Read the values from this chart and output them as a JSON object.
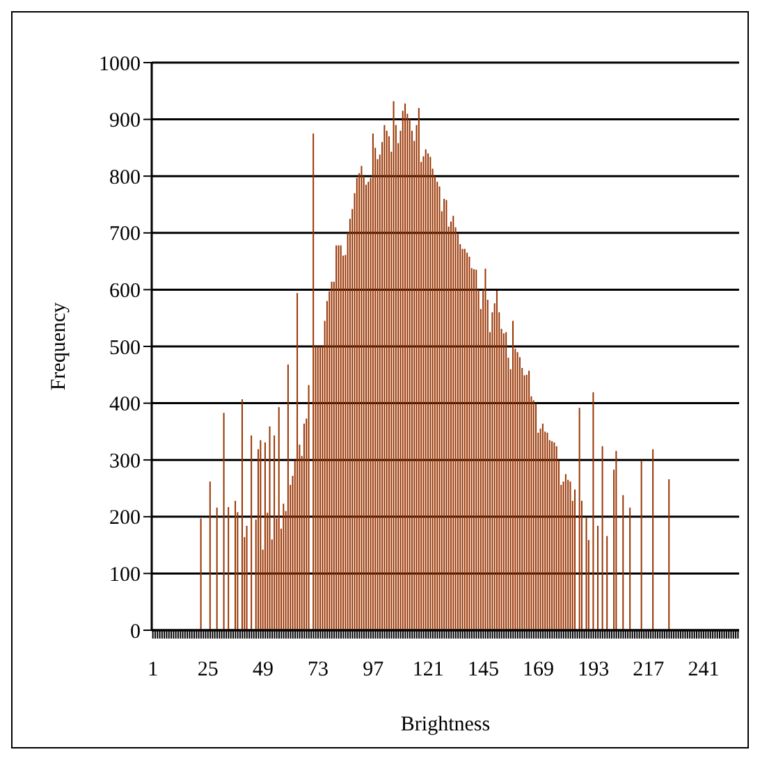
{
  "chart_data": {
    "type": "bar",
    "xlabel": "Brightness",
    "ylabel": "Frequency",
    "color": "#993300",
    "ylim": [
      0,
      1000
    ],
    "yticks": [
      0,
      100,
      200,
      300,
      400,
      500,
      600,
      700,
      800,
      900,
      1000
    ],
    "grid": "y",
    "categories": [
      "1",
      null,
      null,
      null,
      null,
      null,
      null,
      null,
      null,
      null,
      null,
      null,
      null,
      null,
      null,
      null,
      null,
      null,
      null,
      null,
      null,
      null,
      null,
      null,
      "25",
      null,
      null,
      null,
      null,
      null,
      null,
      null,
      null,
      null,
      null,
      null,
      null,
      null,
      null,
      null,
      null,
      null,
      null,
      null,
      null,
      null,
      null,
      null,
      "49",
      null,
      null,
      null,
      null,
      null,
      null,
      null,
      null,
      null,
      null,
      null,
      null,
      null,
      null,
      null,
      null,
      null,
      null,
      null,
      null,
      null,
      null,
      null,
      "73",
      null,
      null,
      null,
      null,
      null,
      null,
      null,
      null,
      null,
      null,
      null,
      null,
      null,
      null,
      null,
      null,
      null,
      null,
      null,
      null,
      null,
      null,
      null,
      "97",
      null,
      null,
      null,
      null,
      null,
      null,
      null,
      null,
      null,
      null,
      null,
      null,
      null,
      null,
      null,
      null,
      null,
      null,
      null,
      null,
      null,
      null,
      null,
      "121",
      null,
      null,
      null,
      null,
      null,
      null,
      null,
      null,
      null,
      null,
      null,
      null,
      null,
      null,
      null,
      null,
      null,
      null,
      null,
      null,
      null,
      null,
      null,
      "145",
      null,
      null,
      null,
      null,
      null,
      null,
      null,
      null,
      null,
      null,
      null,
      null,
      null,
      null,
      null,
      null,
      null,
      null,
      null,
      null,
      null,
      null,
      null,
      "169",
      null,
      null,
      null,
      null,
      null,
      null,
      null,
      null,
      null,
      null,
      null,
      null,
      null,
      null,
      null,
      null,
      null,
      null,
      null,
      null,
      null,
      null,
      null,
      "193",
      null,
      null,
      null,
      null,
      null,
      null,
      null,
      null,
      null,
      null,
      null,
      null,
      null,
      null,
      null,
      null,
      null,
      null,
      null,
      null,
      null,
      null,
      null,
      "217",
      null,
      null,
      null,
      null,
      null,
      null,
      null,
      null,
      null,
      null,
      null,
      null,
      null,
      null,
      null,
      null,
      null,
      null,
      null,
      null,
      null,
      null,
      null,
      "241",
      null,
      null,
      null,
      null,
      null,
      null,
      null,
      null,
      null,
      null,
      null,
      null,
      null,
      null,
      null
    ],
    "values": [
      0,
      0,
      0,
      0,
      0,
      0,
      0,
      0,
      0,
      0,
      0,
      0,
      0,
      0,
      0,
      0,
      0,
      0,
      0,
      0,
      0,
      197,
      0,
      0,
      0,
      262,
      0,
      0,
      216,
      0,
      0,
      383,
      0,
      217,
      0,
      0,
      228,
      208,
      0,
      407,
      164,
      184,
      0,
      343,
      0,
      195,
      319,
      335,
      142,
      331,
      207,
      359,
      160,
      343,
      197,
      393,
      179,
      223,
      210,
      468,
      256,
      272,
      299,
      594,
      327,
      307,
      364,
      373,
      432,
      0,
      875,
      500,
      500,
      500,
      500,
      545,
      580,
      597,
      614,
      614,
      678,
      678,
      678,
      660,
      661,
      700,
      725,
      742,
      770,
      797,
      805,
      818,
      800,
      785,
      790,
      797,
      875,
      850,
      830,
      838,
      860,
      890,
      880,
      870,
      843,
      932,
      890,
      858,
      880,
      915,
      928,
      910,
      900,
      880,
      862,
      890,
      920,
      825,
      835,
      847,
      840,
      834,
      813,
      800,
      790,
      782,
      738,
      760,
      758,
      711,
      720,
      730,
      710,
      698,
      680,
      672,
      672,
      665,
      658,
      638,
      636,
      635,
      600,
      566,
      600,
      637,
      582,
      525,
      560,
      576,
      598,
      560,
      531,
      523,
      525,
      480,
      460,
      545,
      496,
      490,
      481,
      462,
      449,
      450,
      457,
      412,
      405,
      399,
      348,
      355,
      364,
      350,
      348,
      335,
      333,
      331,
      324,
      299,
      256,
      262,
      275,
      265,
      262,
      228,
      248,
      0,
      392,
      228,
      0,
      198,
      159,
      0,
      419,
      0,
      184,
      0,
      324,
      0,
      166,
      0,
      0,
      283,
      316,
      0,
      0,
      238,
      0,
      0,
      216,
      0,
      0,
      0,
      0,
      299,
      0,
      0,
      0,
      0,
      319,
      0,
      0,
      0,
      0,
      0,
      0,
      266,
      0,
      0,
      0,
      0,
      0,
      0,
      0,
      0,
      0,
      0,
      0,
      0,
      0,
      0,
      0,
      0,
      0,
      0,
      0,
      0,
      0,
      0,
      0,
      0,
      0,
      0,
      0,
      0,
      0,
      0
    ]
  }
}
